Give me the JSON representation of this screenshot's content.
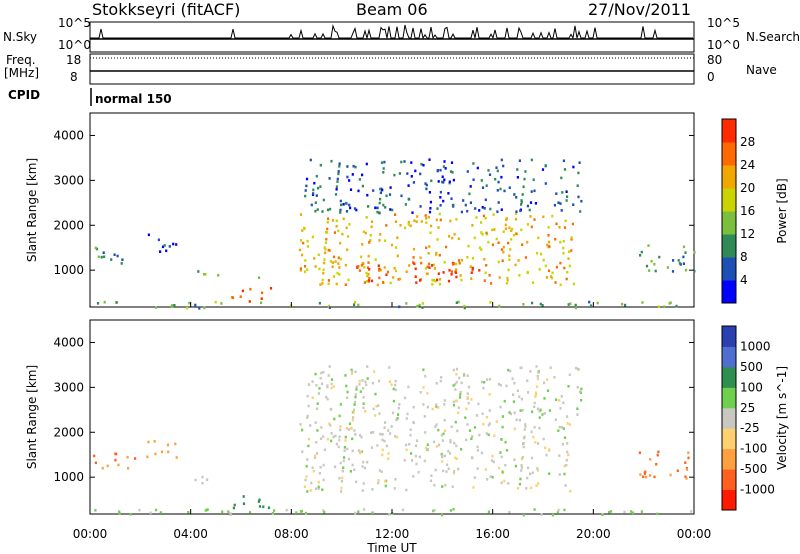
{
  "header": {
    "station": "Stokkseyri (fitACF)",
    "beam": "Beam 06",
    "date": "27/Nov/2011"
  },
  "top_panels": {
    "nsky_label": "N.Sky",
    "nsky_ticks": [
      "10^5",
      "10^0"
    ],
    "nsearch_label": "N.Search",
    "nsearch_ticks": [
      "10^5",
      "10^0"
    ],
    "freq_label_1": "Freq.",
    "freq_label_2": "[MHz]",
    "freq_ticks": [
      "18",
      "8"
    ],
    "nave_label": "Nave",
    "nave_ticks": [
      "80",
      "0"
    ],
    "cpid_label": "CPID",
    "cpid_value": "normal 150"
  },
  "chart_data": [
    {
      "type": "heatmap",
      "panel": "power",
      "xlabel": "Time UT",
      "ylabel": "Slant Range [km]",
      "xlim": [
        0,
        24
      ],
      "ylim": [
        180,
        4500
      ],
      "x_ticks": [
        "00:00",
        "04:00",
        "08:00",
        "12:00",
        "16:00",
        "20:00",
        "00:00"
      ],
      "y_ticks": [
        "1000",
        "2000",
        "3000",
        "4000"
      ],
      "colorbar": {
        "label": "Power [dB]",
        "ticks": [
          "4",
          "8",
          "12",
          "16",
          "20",
          "24",
          "28"
        ],
        "range": [
          0,
          30
        ],
        "colors": [
          "#0000ff",
          "#1e4fb4",
          "#2e8b57",
          "#7cbf3c",
          "#c9d400",
          "#f0a800",
          "#ff6a00",
          "#ff2a00"
        ]
      },
      "scatter_regions": [
        {
          "t_start": 0.1,
          "t_end": 1.8,
          "r_min": 1150,
          "r_max": 1550,
          "value": 8
        },
        {
          "t_start": 2.2,
          "t_end": 3.4,
          "r_min": 1400,
          "r_max": 1850,
          "value": 6
        },
        {
          "t_start": 4.0,
          "t_end": 5.1,
          "r_min": 850,
          "r_max": 1050,
          "value": 14
        },
        {
          "t_start": 5.6,
          "t_end": 7.2,
          "r_min": 300,
          "r_max": 650,
          "value": 24
        },
        {
          "t_start": 6.3,
          "t_end": 7.1,
          "r_min": 850,
          "r_max": 950,
          "value": 10
        },
        {
          "t_start": 8.3,
          "t_end": 19.2,
          "r_min": 700,
          "r_max": 2300,
          "value": 20
        },
        {
          "t_start": 10.5,
          "t_end": 15.5,
          "r_min": 700,
          "r_max": 1200,
          "value": 28
        },
        {
          "t_start": 8.5,
          "t_end": 19.5,
          "r_min": 2300,
          "r_max": 3500,
          "value": 6
        },
        {
          "t_start": 21.8,
          "t_end": 24.0,
          "r_min": 1000,
          "r_max": 1600,
          "value": 10
        },
        {
          "t_start": 0.0,
          "t_end": 24.0,
          "r_min": 180,
          "r_max": 320,
          "value": 12
        }
      ]
    },
    {
      "type": "heatmap",
      "panel": "velocity",
      "xlabel": "Time UT",
      "ylabel": "Slant Range [km]",
      "xlim": [
        0,
        24
      ],
      "ylim": [
        180,
        4500
      ],
      "x_ticks": [
        "00:00",
        "04:00",
        "08:00",
        "12:00",
        "16:00",
        "20:00",
        "00:00"
      ],
      "y_ticks": [
        "1000",
        "2000",
        "3000",
        "4000"
      ],
      "colorbar": {
        "label": "Velocity [m s^-1]",
        "ticks": [
          "1000",
          "500",
          "100",
          "25",
          "-25",
          "-100",
          "-500",
          "-1000"
        ],
        "colors": [
          "#2a3fb0",
          "#4f6fd0",
          "#2f8f4f",
          "#6fcf4f",
          "#c8c8c0",
          "#ffd070",
          "#ffa040",
          "#ff6020",
          "#ff1a00"
        ]
      },
      "scatter_regions": [
        {
          "t_start": 0.1,
          "t_end": 1.8,
          "r_min": 1150,
          "r_max": 1550,
          "value": -500
        },
        {
          "t_start": 2.2,
          "t_end": 3.4,
          "r_min": 1400,
          "r_max": 1850,
          "value": -400
        },
        {
          "t_start": 4.0,
          "t_end": 5.1,
          "r_min": 850,
          "r_max": 1050,
          "value": 0
        },
        {
          "t_start": 5.6,
          "t_end": 7.2,
          "r_min": 300,
          "r_max": 650,
          "value": 150
        },
        {
          "t_start": 8.3,
          "t_end": 19.2,
          "r_min": 700,
          "r_max": 2300,
          "value": 0
        },
        {
          "t_start": 8.5,
          "t_end": 19.5,
          "r_min": 2300,
          "r_max": 3500,
          "value": 0
        },
        {
          "t_start": 21.8,
          "t_end": 24.0,
          "r_min": 1000,
          "r_max": 1600,
          "value": -500
        },
        {
          "t_start": 0.0,
          "t_end": 24.0,
          "r_min": 180,
          "r_max": 320,
          "value": 50
        }
      ]
    }
  ]
}
